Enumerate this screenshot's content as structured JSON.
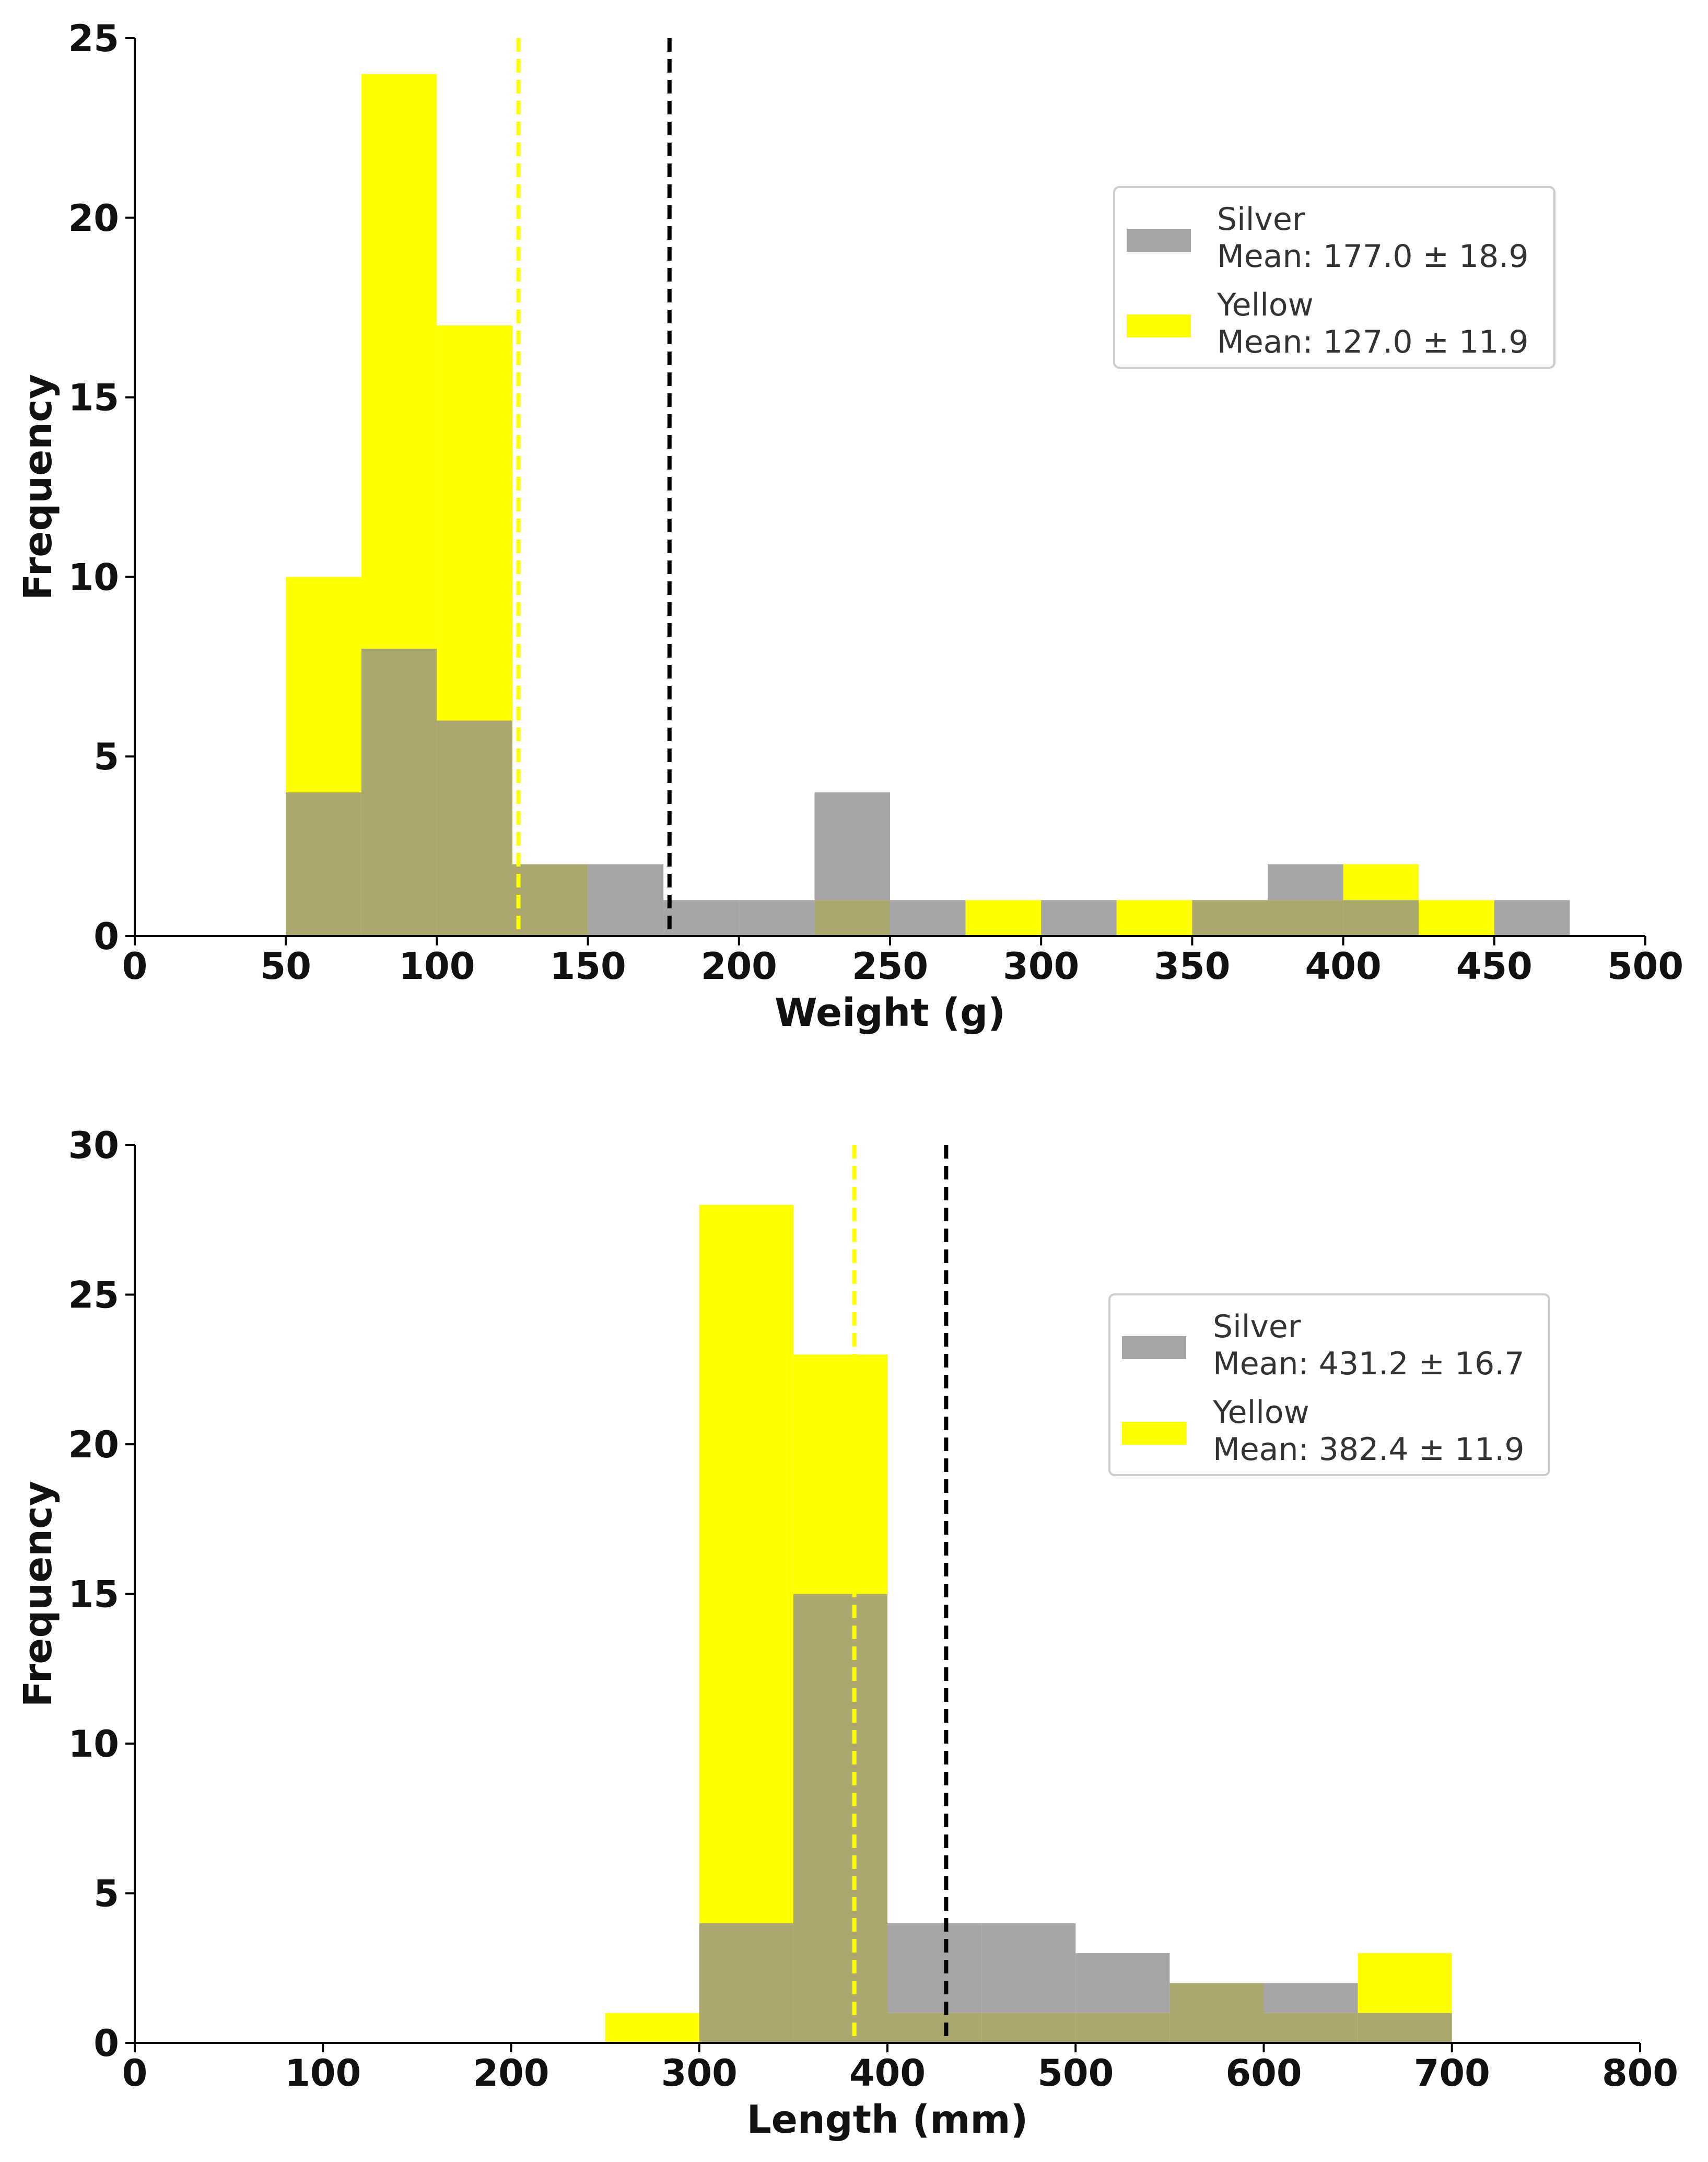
{
  "colors": {
    "silver": "#a6a6a6",
    "yellow": "#ffff00",
    "overlap": "#aaa86e",
    "silver_mean_line": "#000000",
    "yellow_mean_line": "#ffff00"
  },
  "chart_data": [
    {
      "type": "histogram",
      "xlabel": "Weight (g)",
      "ylabel": "Frequency",
      "xlim": [
        0,
        500
      ],
      "ylim": [
        0,
        25
      ],
      "xticks": [
        0,
        50,
        100,
        150,
        200,
        250,
        300,
        350,
        400,
        450,
        500
      ],
      "yticks": [
        0,
        5,
        10,
        15,
        20,
        25
      ],
      "bin_edges": [
        50,
        75,
        100,
        125,
        150,
        175,
        200,
        225,
        250,
        275,
        300,
        325,
        350,
        375,
        400,
        425,
        450,
        475
      ],
      "series": [
        {
          "name": "Silver",
          "color_key": "silver",
          "values": [
            4,
            8,
            6,
            2,
            2,
            1,
            1,
            4,
            1,
            0,
            1,
            0,
            1,
            2,
            1,
            0,
            1
          ],
          "mean": 177.0
        },
        {
          "name": "Yellow",
          "color_key": "yellow",
          "values": [
            10,
            24,
            17,
            2,
            0,
            0,
            0,
            1,
            0,
            1,
            0,
            1,
            1,
            1,
            2,
            1,
            0
          ],
          "mean": 127.0
        }
      ],
      "legend": {
        "position": "upper-right",
        "entries": [
          {
            "label": "Silver",
            "stat": "Mean: 177.0 ± 18.9",
            "color_key": "silver"
          },
          {
            "label": "Yellow",
            "stat": "Mean: 127.0 ± 11.9",
            "color_key": "yellow"
          }
        ]
      }
    },
    {
      "type": "histogram",
      "xlabel": "Length (mm)",
      "ylabel": "Frequency",
      "xlim": [
        0,
        800
      ],
      "ylim": [
        0,
        30
      ],
      "xticks": [
        0,
        100,
        200,
        300,
        400,
        500,
        600,
        700,
        800
      ],
      "yticks": [
        0,
        5,
        10,
        15,
        20,
        25,
        30
      ],
      "bin_edges": [
        250,
        300,
        350,
        400,
        450,
        500,
        550,
        600,
        650,
        700
      ],
      "series": [
        {
          "name": "Silver",
          "color_key": "silver",
          "values": [
            0,
            4,
            15,
            4,
            4,
            3,
            2,
            2,
            1
          ],
          "mean": 431.2
        },
        {
          "name": "Yellow",
          "color_key": "yellow",
          "values": [
            1,
            28,
            23,
            1,
            1,
            1,
            2,
            1,
            3
          ],
          "mean": 382.4
        }
      ],
      "legend": {
        "position": "upper-right",
        "entries": [
          {
            "label": "Silver",
            "stat": "Mean: 431.2 ± 16.7",
            "color_key": "silver"
          },
          {
            "label": "Yellow",
            "stat": "Mean: 382.4 ± 11.9",
            "color_key": "yellow"
          }
        ]
      }
    }
  ]
}
